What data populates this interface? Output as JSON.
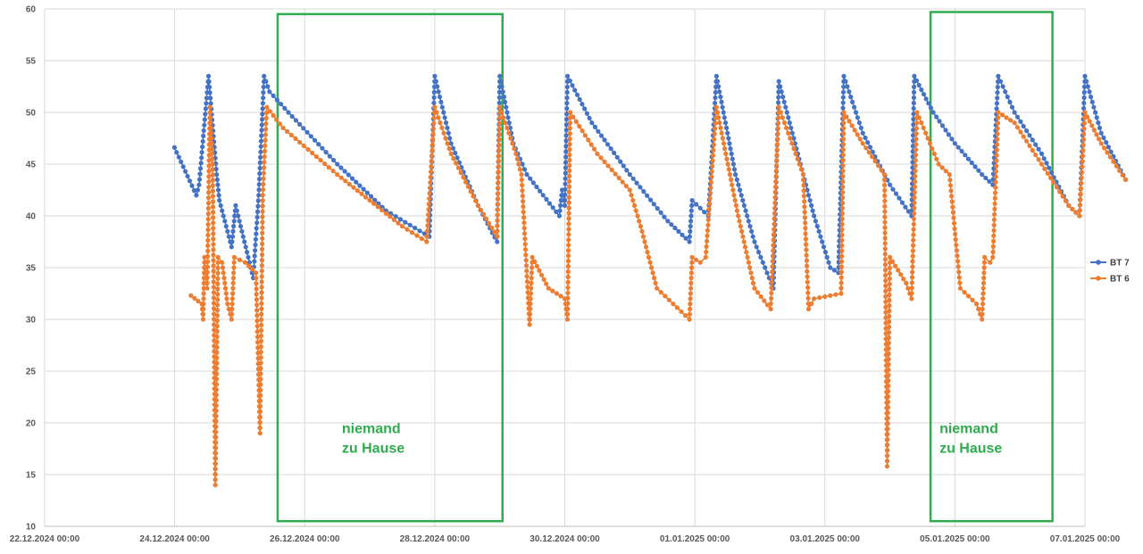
{
  "chart_data": {
    "type": "line",
    "title": "",
    "xlabel": "",
    "ylabel": "",
    "x_range": [
      "22.12.2024 00:00",
      "07.01.2025 00:00"
    ],
    "ylim": [
      10,
      60
    ],
    "y_ticks": [
      10,
      15,
      20,
      25,
      30,
      35,
      40,
      45,
      50,
      55,
      60
    ],
    "x_ticks": [
      "22.12.2024 00:00",
      "24.12.2024 00:00",
      "26.12.2024 00:00",
      "28.12.2024 00:00",
      "30.12.2024 00:00",
      "01.01.2025 00:00",
      "03.01.2025 00:00",
      "05.01.2025 00:00",
      "07.01.2025 00:00"
    ],
    "grid": "vertical and horizontal",
    "legend": "right",
    "colors": {
      "bt7": "#4472c4",
      "bt6": "#ed7d31",
      "annotation": "#2fad4e"
    },
    "series": [
      {
        "name": "BT 7",
        "color": "#4472c4",
        "points": [
          [
            "23.12.2024 23:55",
            46.6
          ],
          [
            "24.12.2024 08:00",
            42.0
          ],
          [
            "24.12.2024 09:00",
            43.0
          ],
          [
            "24.12.2024 12:30",
            53.5
          ],
          [
            "24.12.2024 15:30",
            44.0
          ],
          [
            "24.12.2024 16:30",
            41.5
          ],
          [
            "24.12.2024 21:00",
            37.0
          ],
          [
            "24.12.2024 22:30",
            41.0
          ],
          [
            "25.12.2024 05:00",
            34.0
          ],
          [
            "25.12.2024 07:00",
            42.0
          ],
          [
            "25.12.2024 09:00",
            53.5
          ],
          [
            "25.12.2024 11:00",
            52.0
          ],
          [
            "25.12.2024 18:00",
            50.0
          ],
          [
            "26.12.2024 12:00",
            45.0
          ],
          [
            "27.12.2024 06:00",
            40.5
          ],
          [
            "27.12.2024 22:00",
            38.0
          ],
          [
            "28.12.2024 00:00",
            53.5
          ],
          [
            "28.12.2024 06:00",
            47.0
          ],
          [
            "28.12.2024 16:00",
            41.0
          ],
          [
            "28.12.2024 23:00",
            37.5
          ],
          [
            "29.12.2024 00:00",
            53.5
          ],
          [
            "29.12.2024 05:00",
            47.0
          ],
          [
            "29.12.2024 10:00",
            44.0
          ],
          [
            "29.12.2024 22:00",
            40.0
          ],
          [
            "29.12.2024 23:00",
            42.5
          ],
          [
            "30.12.2024 00:00",
            41.0
          ],
          [
            "30.12.2024 01:00",
            53.5
          ],
          [
            "30.12.2024 10:00",
            49.0
          ],
          [
            "31.12.2024 00:00",
            44.0
          ],
          [
            "31.12.2024 14:00",
            39.5
          ],
          [
            "31.12.2024 22:00",
            37.5
          ],
          [
            "31.12.2024 23:00",
            41.5
          ],
          [
            "01.01.2025 05:00",
            40.0
          ],
          [
            "01.01.2025 08:00",
            53.5
          ],
          [
            "01.01.2025 15:00",
            44.0
          ],
          [
            "01.01.2025 22:00",
            37.5
          ],
          [
            "02.01.2025 05:00",
            33.0
          ],
          [
            "02.01.2025 07:00",
            53.0
          ],
          [
            "02.01.2025 14:00",
            46.0
          ],
          [
            "02.01.2025 20:00",
            40.0
          ],
          [
            "03.01.2025 02:00",
            35.0
          ],
          [
            "03.01.2025 05:00",
            34.5
          ],
          [
            "03.01.2025 07:00",
            53.5
          ],
          [
            "03.01.2025 14:00",
            48.0
          ],
          [
            "04.01.2025 00:00",
            43.0
          ],
          [
            "04.01.2025 08:00",
            40.0
          ],
          [
            "04.01.2025 09:00",
            53.5
          ],
          [
            "04.01.2025 16:00",
            50.0
          ],
          [
            "05.01.2025 00:00",
            47.0
          ],
          [
            "05.01.2025 10:00",
            44.0
          ],
          [
            "05.01.2025 14:00",
            43.0
          ],
          [
            "05.01.2025 16:00",
            53.5
          ],
          [
            "05.01.2025 22:00",
            50.0
          ],
          [
            "06.01.2025 08:00",
            46.0
          ],
          [
            "06.01.2025 18:00",
            41.0
          ],
          [
            "06.01.2025 22:00",
            40.0
          ],
          [
            "07.01.2025 00:00",
            53.5
          ],
          [
            "07.01.2025 06:00",
            48.0
          ],
          [
            "07.01.2025 15:00",
            43.5
          ]
        ]
      },
      {
        "name": "BT 6",
        "color": "#ed7d31",
        "points": [
          [
            "24.12.2024 06:00",
            32.3
          ],
          [
            "24.12.2024 10:00",
            31.5
          ],
          [
            "24.12.2024 10:30",
            30.0
          ],
          [
            "24.12.2024 11:00",
            36.0
          ],
          [
            "24.12.2024 12:00",
            33.0
          ],
          [
            "24.12.2024 13:00",
            50.5
          ],
          [
            "24.12.2024 14:00",
            45.0
          ],
          [
            "24.12.2024 15:00",
            14.0
          ],
          [
            "24.12.2024 16:00",
            36.0
          ],
          [
            "24.12.2024 17:30",
            35.5
          ],
          [
            "24.12.2024 19:30",
            31.5
          ],
          [
            "24.12.2024 21:00",
            30.0
          ],
          [
            "24.12.2024 22:00",
            36.0
          ],
          [
            "25.12.2024 02:00",
            35.5
          ],
          [
            "25.12.2024 06:00",
            34.5
          ],
          [
            "25.12.2024 07:30",
            19.0
          ],
          [
            "25.12.2024 08:30",
            42.0
          ],
          [
            "25.12.2024 10:00",
            50.5
          ],
          [
            "25.12.2024 16:00",
            48.5
          ],
          [
            "26.12.2024 12:00",
            44.0
          ],
          [
            "27.12.2024 12:00",
            39.0
          ],
          [
            "27.12.2024 21:00",
            37.5
          ],
          [
            "28.12.2024 00:00",
            50.5
          ],
          [
            "28.12.2024 06:00",
            46.0
          ],
          [
            "28.12.2024 16:00",
            41.0
          ],
          [
            "28.12.2024 23:00",
            38.0
          ],
          [
            "29.12.2024 00:00",
            50.5
          ],
          [
            "29.12.2024 06:00",
            46.0
          ],
          [
            "29.12.2024 08:00",
            44.0
          ],
          [
            "29.12.2024 11:00",
            29.5
          ],
          [
            "29.12.2024 12:00",
            36.0
          ],
          [
            "29.12.2024 18:00",
            33.0
          ],
          [
            "30.12.2024 00:00",
            32.0
          ],
          [
            "30.12.2024 01:00",
            30.0
          ],
          [
            "30.12.2024 02:00",
            50.0
          ],
          [
            "30.12.2024 12:00",
            46.0
          ],
          [
            "31.12.2024 00:00",
            42.5
          ],
          [
            "31.12.2024 04:00",
            39.0
          ],
          [
            "31.12.2024 10:00",
            33.0
          ],
          [
            "31.12.2024 22:00",
            30.0
          ],
          [
            "31.12.2024 23:00",
            36.0
          ],
          [
            "01.01.2025 02:00",
            35.5
          ],
          [
            "01.01.2025 04:00",
            36.0
          ],
          [
            "01.01.2025 08:00",
            50.5
          ],
          [
            "01.01.2025 16:00",
            40.0
          ],
          [
            "01.01.2025 22:00",
            33.0
          ],
          [
            "02.01.2025 04:00",
            31.0
          ],
          [
            "02.01.2025 07:00",
            50.5
          ],
          [
            "02.01.2025 16:00",
            44.0
          ],
          [
            "02.01.2025 18:00",
            31.0
          ],
          [
            "02.01.2025 20:00",
            32.0
          ],
          [
            "03.01.2025 06:00",
            32.5
          ],
          [
            "03.01.2025 07:00",
            50.0
          ],
          [
            "03.01.2025 14:00",
            47.0
          ],
          [
            "03.01.2025 22:00",
            44.0
          ],
          [
            "03.01.2025 23:00",
            15.8
          ],
          [
            "04.01.2025 00:00",
            36.0
          ],
          [
            "04.01.2025 06:00",
            33.5
          ],
          [
            "04.01.2025 08:00",
            32.0
          ],
          [
            "04.01.2025 10:00",
            50.0
          ],
          [
            "04.01.2025 18:00",
            45.0
          ],
          [
            "04.01.2025 22:00",
            44.0
          ],
          [
            "05.01.2025 02:00",
            33.0
          ],
          [
            "05.01.2025 08:00",
            31.5
          ],
          [
            "05.01.2025 10:00",
            30.0
          ],
          [
            "05.01.2025 11:00",
            36.0
          ],
          [
            "05.01.2025 13:00",
            35.5
          ],
          [
            "05.01.2025 14:00",
            36.0
          ],
          [
            "05.01.2025 16:00",
            50.0
          ],
          [
            "05.01.2025 22:00",
            49.0
          ],
          [
            "06.01.2025 08:00",
            45.0
          ],
          [
            "06.01.2025 18:00",
            41.0
          ],
          [
            "06.01.2025 22:00",
            40.0
          ],
          [
            "07.01.2025 00:00",
            50.0
          ],
          [
            "07.01.2025 06:00",
            47.0
          ],
          [
            "07.01.2025 15:00",
            43.5
          ]
        ]
      }
    ],
    "annotations": [
      {
        "text_lines": [
          "niemand",
          "zu Hause"
        ],
        "x_start": "25.12.2024 14:00",
        "x_end": "29.12.2024 01:00",
        "y_start": 10.5,
        "y_end": 59.5
      },
      {
        "text_lines": [
          "niemand",
          "zu Hause"
        ],
        "x_start": "04.01.2025 15:00",
        "x_end": "06.01.2025 12:00",
        "y_start": 10.5,
        "y_end": 59.7
      }
    ]
  }
}
